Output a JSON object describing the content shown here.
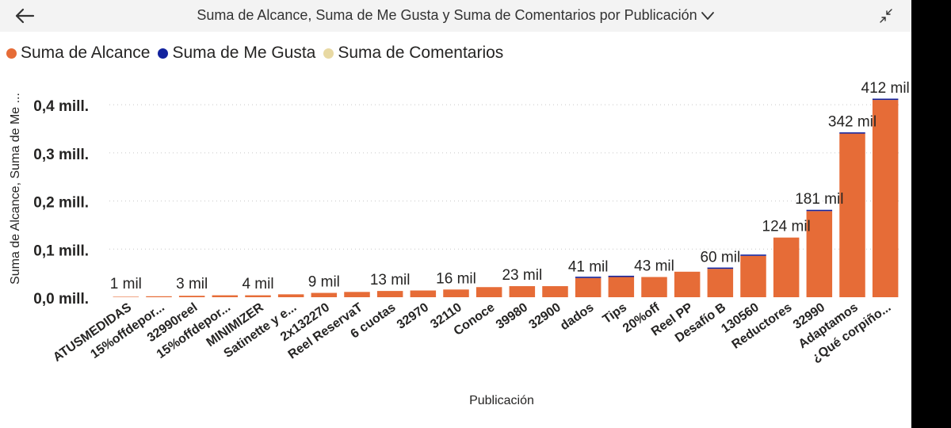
{
  "header": {
    "title": "Suma de Alcance, Suma de Me Gusta y Suma de Comentarios por Publicación"
  },
  "chart_data": {
    "type": "bar",
    "stacked": true,
    "title": "Suma de Alcance, Suma de Me Gusta y Suma de Comentarios por Publicación",
    "xlabel": "Publicación",
    "ylabel": "Suma de Alcance, Suma de Me ...",
    "ylim": [
      0,
      0.42
    ],
    "yticks": [
      {
        "value": 0.0,
        "label": "0,0 mill."
      },
      {
        "value": 0.1,
        "label": "0,1 mill."
      },
      {
        "value": 0.2,
        "label": "0,2 mill."
      },
      {
        "value": 0.3,
        "label": "0,3 mill."
      },
      {
        "value": 0.4,
        "label": "0,4 mill."
      }
    ],
    "grid": true,
    "legend_position": "top-left",
    "categories": [
      "ATUSMEDIDAS",
      "15%offdepor...",
      "32990reel",
      "15%offdepor...",
      "MINIMIZER",
      "Satinette y e...",
      "2x132270",
      "Reel ReservaT",
      "6 cuotas",
      "32970",
      "32110",
      "Conoce",
      "39980",
      "32900",
      "dados",
      "Tips",
      "20%off",
      "Reel PP",
      "Desafío B",
      "130560",
      "Reductores",
      "32990",
      "Adaptamos",
      "¿Qué corpiño..."
    ],
    "series": [
      {
        "name": "Suma de Alcance",
        "color": "#E66C37",
        "values": [
          0.001,
          0.002,
          0.003,
          0.004,
          0.004,
          0.006,
          0.009,
          0.011,
          0.013,
          0.014,
          0.016,
          0.021,
          0.023,
          0.023,
          0.04,
          0.042,
          0.042,
          0.053,
          0.059,
          0.086,
          0.124,
          0.179,
          0.34,
          0.41
        ]
      },
      {
        "name": "Suma de Me Gusta",
        "color": "#12239E",
        "values": [
          0,
          0,
          0,
          0,
          0,
          0,
          0,
          0,
          0,
          0,
          0,
          0,
          0,
          0,
          0.0005,
          0.0015,
          0,
          0,
          0.001,
          0.0007,
          0,
          0.0018,
          0.0015,
          0.0015
        ]
      },
      {
        "name": "Suma de Comentarios",
        "color": "#E8D9A3",
        "values": [
          0,
          0,
          0,
          0,
          0,
          0,
          0,
          0,
          0,
          0,
          0,
          0,
          0,
          0,
          0,
          0,
          0,
          0,
          0,
          0,
          0,
          0,
          0,
          0
        ]
      }
    ],
    "data_labels": [
      {
        "index": 0,
        "text": "1 mil"
      },
      {
        "index": 2,
        "text": "3 mil"
      },
      {
        "index": 4,
        "text": "4 mil"
      },
      {
        "index": 6,
        "text": "9 mil"
      },
      {
        "index": 8,
        "text": "13 mil"
      },
      {
        "index": 10,
        "text": "16 mil"
      },
      {
        "index": 12,
        "text": "23 mil"
      },
      {
        "index": 14,
        "text": "41 mil"
      },
      {
        "index": 16,
        "text": "43 mil"
      },
      {
        "index": 18,
        "text": "60 mil"
      },
      {
        "index": 20,
        "text": "124 mil"
      },
      {
        "index": 21,
        "text": "181 mil"
      },
      {
        "index": 22,
        "text": "342 mil"
      },
      {
        "index": 23,
        "text": "412 mil"
      }
    ]
  }
}
